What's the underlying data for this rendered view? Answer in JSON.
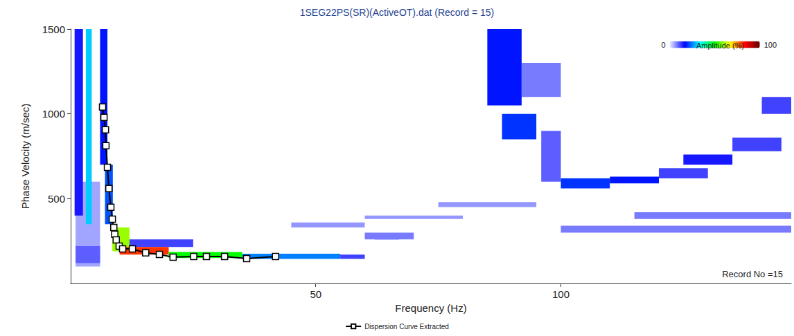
{
  "chart_data": {
    "type": "heatmap",
    "title": "1SEG22PS(SR)(ActiveOT).dat (Record = 15)",
    "x_label": "Frequency (Hz)",
    "y_label": "Phase Velocity (m/sec)",
    "xlim": [
      0,
      147
    ],
    "xticks": [
      50,
      100
    ],
    "ylim": [
      0,
      1500
    ],
    "yticks": [
      500,
      1000,
      1500
    ],
    "grid": false,
    "legend": "bottom",
    "annotations": [
      "Record No =15"
    ],
    "colorbar": {
      "label": "Amplitude (%)",
      "range": [
        0,
        100
      ],
      "ticks": [
        0,
        100
      ]
    },
    "cells": [
      [
        1,
        6,
        100,
        600,
        5
      ],
      [
        0.8,
        2.5,
        400,
        1500,
        15
      ],
      [
        3.1,
        4.3,
        350,
        1500,
        30
      ],
      [
        1,
        6,
        120,
        220,
        10
      ],
      [
        6,
        7.5,
        700,
        1500,
        18
      ],
      [
        7,
        8.6,
        350,
        700,
        22
      ],
      [
        9,
        25,
        215,
        260,
        12
      ],
      [
        8.5,
        12,
        190,
        330,
        60
      ],
      [
        10,
        20,
        170,
        215,
        80
      ],
      [
        20,
        35,
        150,
        185,
        50
      ],
      [
        35,
        55,
        145,
        175,
        25
      ],
      [
        55,
        60,
        145,
        170,
        12
      ],
      [
        62,
        67,
        260,
        290,
        20
      ],
      [
        60,
        70,
        260,
        300,
        8
      ],
      [
        60,
        80,
        380,
        400,
        6
      ],
      [
        75,
        95,
        450,
        480,
        6
      ],
      [
        45,
        60,
        330,
        360,
        6
      ],
      [
        85,
        92,
        1050,
        1500,
        18
      ],
      [
        88,
        95,
        850,
        1000,
        20
      ],
      [
        96,
        100,
        600,
        900,
        10
      ],
      [
        92,
        100,
        1100,
        1300,
        8
      ],
      [
        100,
        110,
        560,
        620,
        20
      ],
      [
        110,
        120,
        590,
        630,
        18
      ],
      [
        120,
        130,
        620,
        680,
        12
      ],
      [
        125,
        135,
        700,
        760,
        15
      ],
      [
        135,
        145,
        780,
        860,
        12
      ],
      [
        141,
        147,
        1000,
        1100,
        12
      ],
      [
        100,
        147,
        300,
        340,
        8
      ],
      [
        115,
        147,
        380,
        420,
        8
      ]
    ],
    "series": [
      {
        "name": "Dispersion Curve Extracted",
        "type": "line",
        "marker": "square",
        "color": "#000000",
        "x": [
          6.5,
          6.8,
          7.1,
          7.2,
          7.5,
          7.8,
          8.2,
          8.5,
          8.8,
          9.0,
          9.3,
          9.9,
          10.6,
          12.6,
          15.3,
          18.1,
          20.9,
          25.1,
          27.7,
          31.4,
          35.9,
          41.8
        ],
        "values": [
          1040,
          979,
          906,
          812,
          685,
          559,
          449,
          379,
          330,
          290,
          257,
          220,
          204,
          204,
          180,
          171,
          155,
          159,
          159,
          159,
          147,
          159
        ]
      }
    ]
  }
}
